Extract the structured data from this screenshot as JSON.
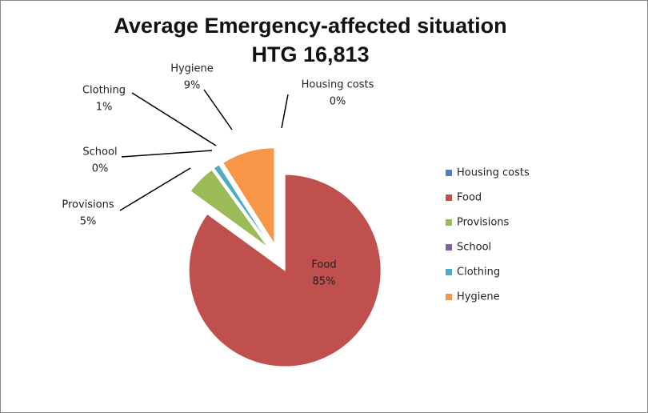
{
  "chart_data": {
    "type": "pie",
    "title": "Average Emergency-affected situation",
    "subtitle": "HTG 16,813",
    "categories": [
      "Housing costs",
      "Food",
      "Provisions",
      "School",
      "Clothing",
      "Hygiene"
    ],
    "values": [
      0,
      85,
      5,
      0,
      1,
      9
    ],
    "value_labels": [
      "0%",
      "85%",
      "5%",
      "0%",
      "1%",
      "9%"
    ],
    "colors": [
      "#4F81BD",
      "#C0504D",
      "#9BBB59",
      "#8064A2",
      "#4BACC6",
      "#F79646"
    ],
    "legend": "right"
  }
}
